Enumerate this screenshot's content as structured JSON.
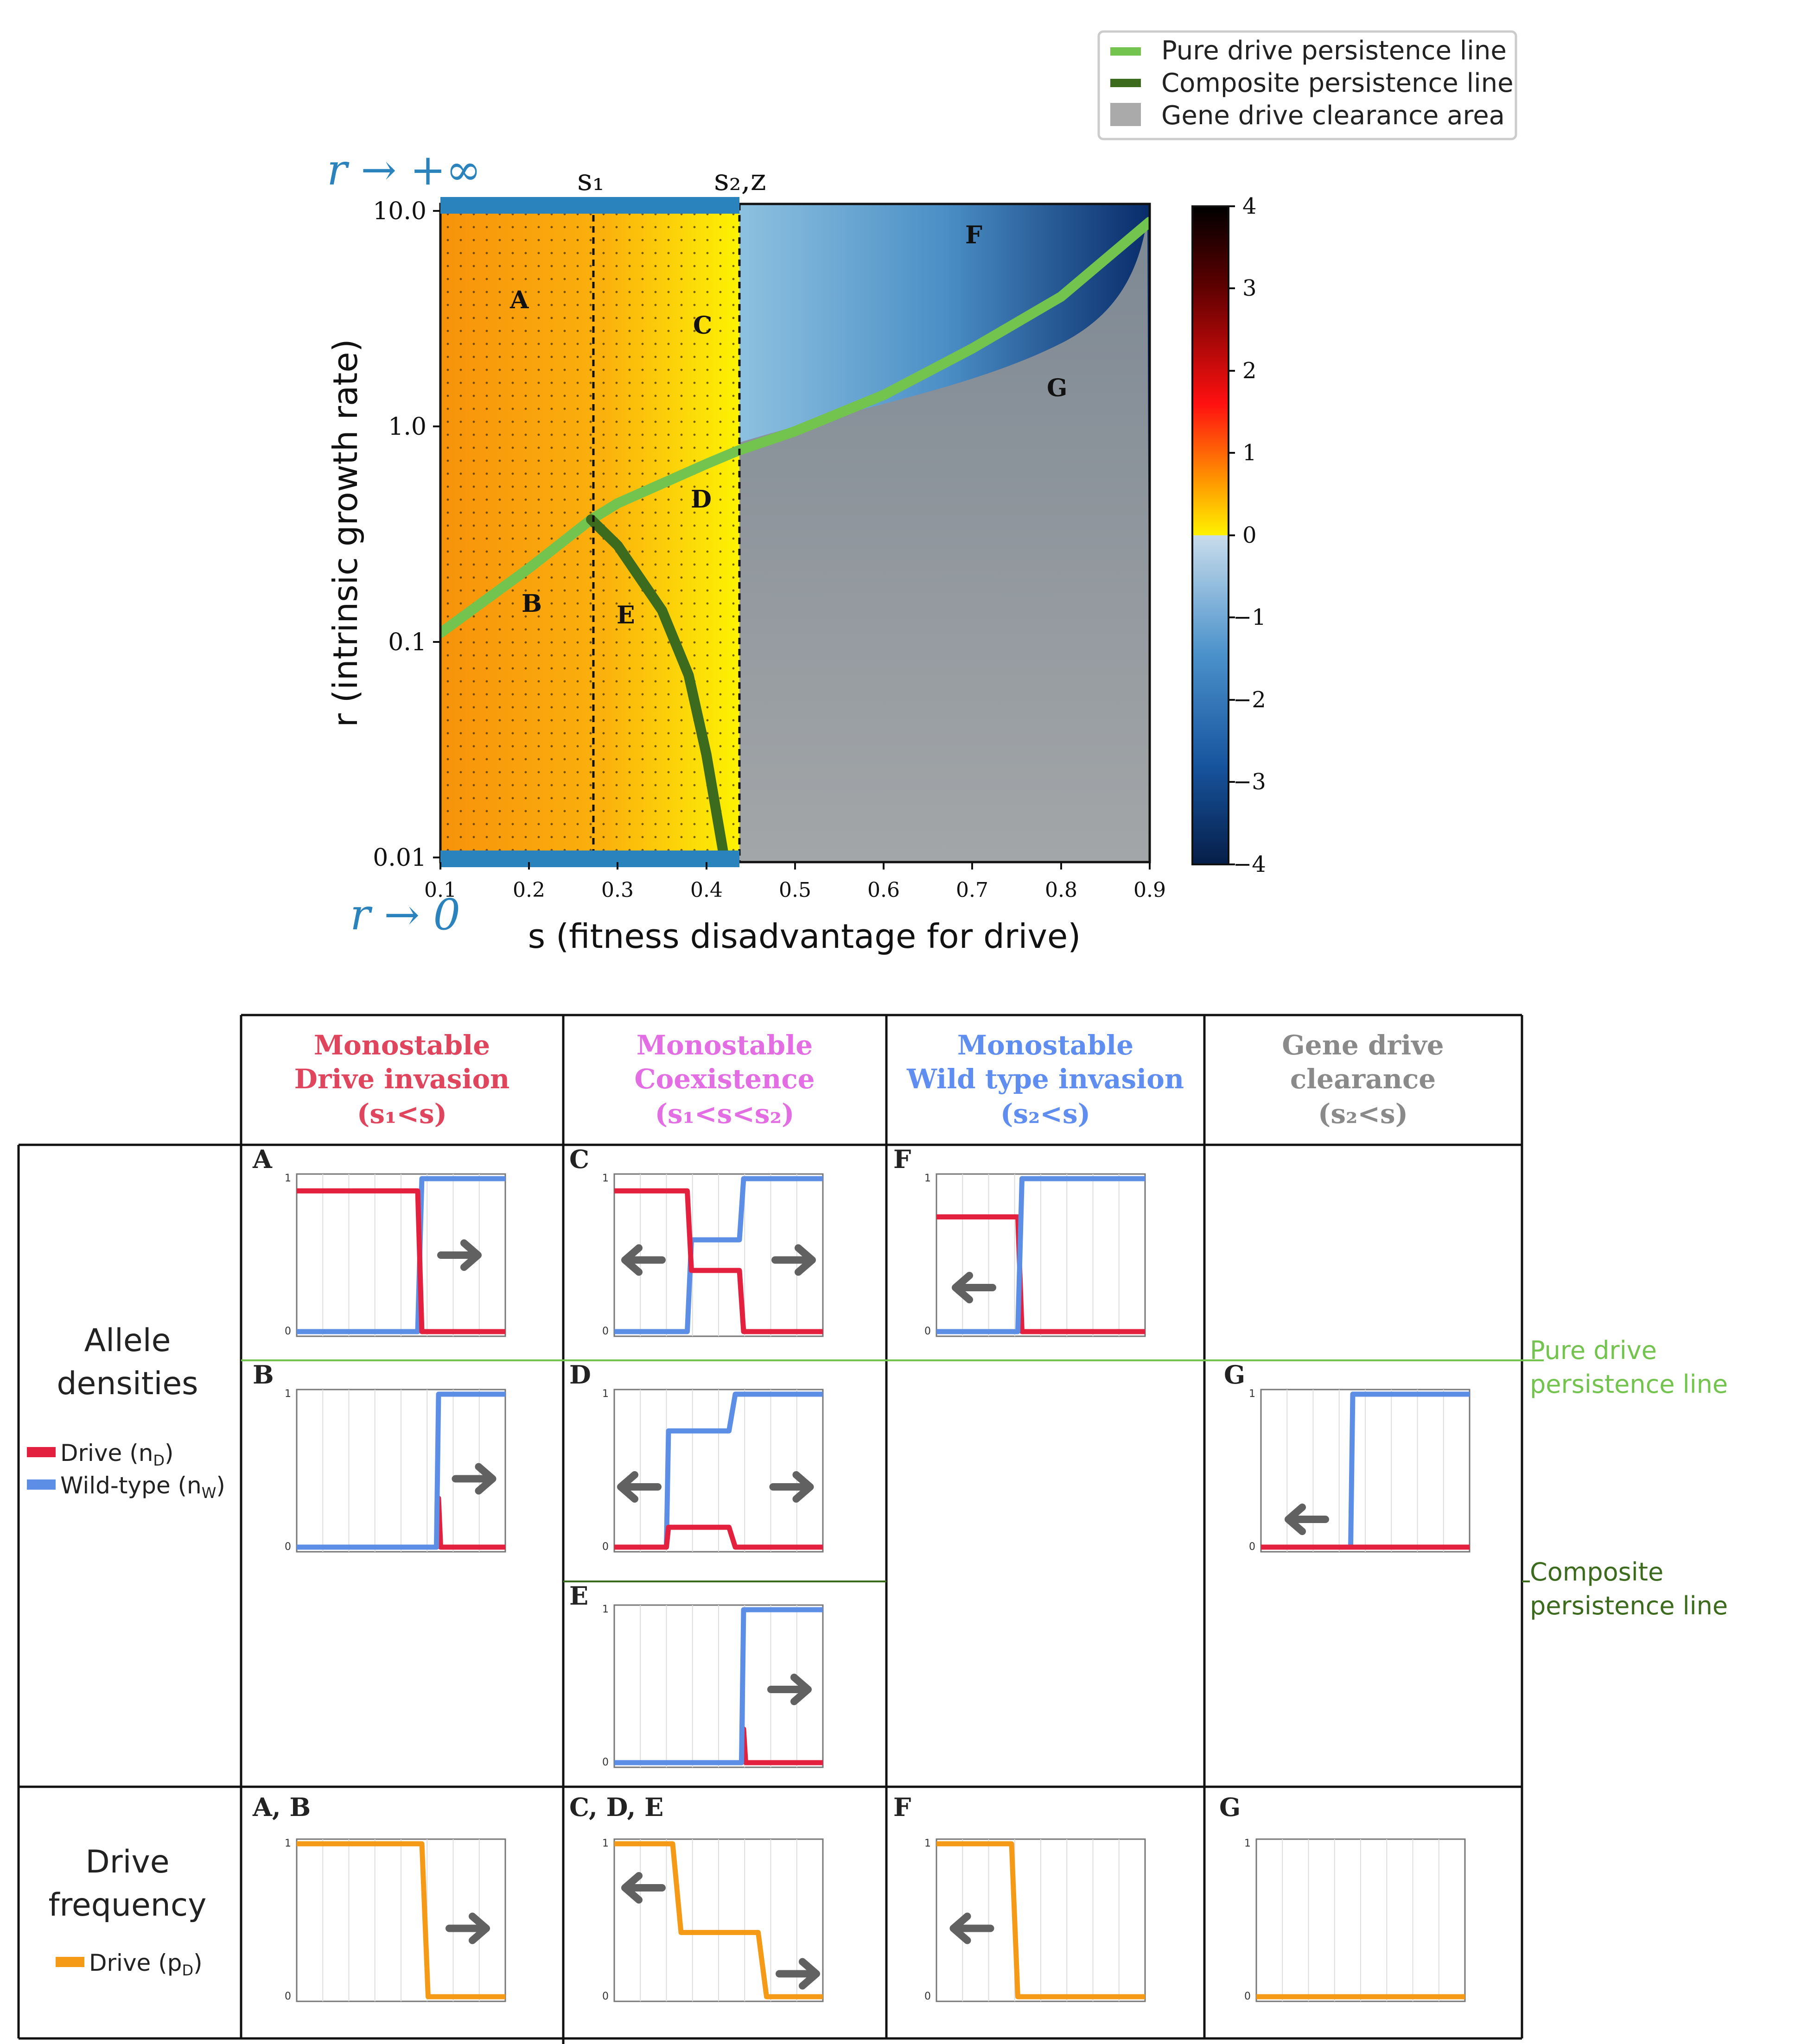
{
  "legend": {
    "pure": "Pure drive persistence line",
    "composite": "Composite persistence line",
    "clearance": "Gene drive clearance area"
  },
  "top_chart": {
    "r_top": "r → +∞",
    "r_bottom": "r → 0",
    "s1_label": "s₁",
    "s2z_label": "s₂,z",
    "xlabel": "s (fitness disadvantage for drive)",
    "ylabel": "r (intrinsic growth rate)",
    "xticks": [
      "0.1",
      "0.2",
      "0.3",
      "0.4",
      "0.5",
      "0.6",
      "0.7",
      "0.8",
      "0.9"
    ],
    "yticks": [
      "10.0",
      "1.0",
      "0.1",
      "0.01"
    ],
    "cbar_ticks": [
      "4",
      "3",
      "2",
      "1",
      "0",
      "−1",
      "−2",
      "−3",
      "−4"
    ],
    "regions": [
      "A",
      "B",
      "C",
      "D",
      "E",
      "F",
      "G"
    ]
  },
  "chart_data": {
    "type": "line",
    "xlabel": "s (fitness disadvantage for drive)",
    "ylabel": "r (intrinsic growth rate)",
    "xlim": [
      0.1,
      0.9
    ],
    "ylim": [
      0.01,
      10.0
    ],
    "yscale": "log",
    "colorbar_range": [
      -4,
      4
    ],
    "series": [
      {
        "name": "Pure drive persistence line",
        "x": [
          0.1,
          0.2,
          0.27,
          0.3,
          0.4,
          0.435,
          0.5,
          0.6,
          0.7,
          0.8,
          0.9
        ],
        "y": [
          0.11,
          0.22,
          0.37,
          0.44,
          0.67,
          0.77,
          0.95,
          1.4,
          2.3,
          4.0,
          8.9
        ]
      },
      {
        "name": "Composite persistence line",
        "x": [
          0.27,
          0.3,
          0.35,
          0.38,
          0.4,
          0.42
        ],
        "y": [
          0.37,
          0.28,
          0.14,
          0.07,
          0.03,
          0.01
        ]
      }
    ],
    "vlines": [
      0.27,
      0.435
    ]
  },
  "table": {
    "headers": [
      {
        "l1": "Monostable",
        "l2": "Drive invasion",
        "l3": "(s₁<s)",
        "color": "#e0455e"
      },
      {
        "l1": "Monostable",
        "l2": "Coexistence",
        "l3": "(s₁<s<s₂)",
        "color": "#e36ee3"
      },
      {
        "l1": "Monostable",
        "l2": "Wild type invasion",
        "l3": "(s₂<s)",
        "color": "#5f8ef0"
      },
      {
        "l1": "Gene drive",
        "l2": "clearance",
        "l3": "(s₂<s)",
        "color": "#8a8a8a"
      }
    ],
    "row1": {
      "title1": "Allele",
      "title2": "densities",
      "legend_drive": "Drive (n",
      "legend_drive_sub": "D",
      "legend_wild": "Wild-type (n",
      "legend_wild_sub": "W",
      "close": ")"
    },
    "row2": {
      "title1": "Drive",
      "title2": "frequency",
      "legend": "Drive (p",
      "legend_sub": "D",
      "close": ")"
    },
    "side_pure1": "Pure drive",
    "side_pure2": "persistence line",
    "side_comp1": "Composite",
    "side_comp2": "persistence line",
    "panel_letters": {
      "A": "A",
      "B": "B",
      "C": "C",
      "D": "D",
      "E": "E",
      "F": "F",
      "G": "G",
      "AB": "A, B",
      "CDE": "C, D, E",
      "F2": "F",
      "G2": "G"
    },
    "axis_one": "1",
    "axis_zero": "0"
  },
  "colors": {
    "drive": "#e3213f",
    "wild": "#5c8ee6",
    "freq": "#f59a16",
    "arrow": "#616161",
    "pure": "#73c44e",
    "composite": "#3c6b1d",
    "bar": "#2a83bd"
  }
}
